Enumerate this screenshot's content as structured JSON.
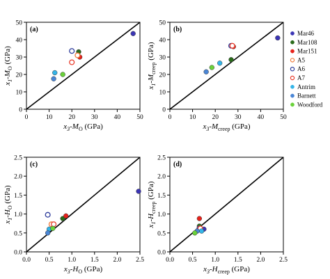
{
  "series_styles": [
    {
      "name": "Mar46",
      "color": "#3b35b5",
      "filled": true
    },
    {
      "name": "Mar108",
      "color": "#2a6b1a",
      "filled": true
    },
    {
      "name": "Mar151",
      "color": "#e8221b",
      "filled": true
    },
    {
      "name": "A5",
      "color": "#f07a3a",
      "filled": false
    },
    {
      "name": "A6",
      "color": "#2b3a9a",
      "filled": false
    },
    {
      "name": "A7",
      "color": "#e83a2a",
      "filled": false
    },
    {
      "name": "Antrim",
      "color": "#35b5e8",
      "filled": true
    },
    {
      "name": "Barnett",
      "color": "#4a86d6",
      "filled": true
    },
    {
      "name": "Woodford",
      "color": "#6ad23a",
      "filled": true
    }
  ],
  "chart_data": [
    {
      "type": "scatter",
      "panel_label": "(a)",
      "xlabel_main": "x",
      "xlabel_sub1": "3",
      "xlabel_mid": "-M",
      "xlabel_sub2": "O",
      "xlabel_unit": " (GPa)",
      "ylabel_main": "x",
      "ylabel_sub1": "1",
      "ylabel_mid": "-M",
      "ylabel_sub2": "O",
      "ylabel_unit": " (GPa)",
      "xlim": [
        0,
        50
      ],
      "ylim": [
        0,
        50
      ],
      "xticks": [
        "0",
        "10",
        "20",
        "30",
        "40",
        "50"
      ],
      "yticks": [
        "0",
        "10",
        "20",
        "30",
        "40",
        "50"
      ],
      "points": [
        {
          "series": "Mar46",
          "x": 47,
          "y": 43.5
        },
        {
          "series": "Mar108",
          "x": 23,
          "y": 33
        },
        {
          "series": "Mar151",
          "x": 23.5,
          "y": 30
        },
        {
          "series": "A5",
          "x": 22.5,
          "y": 31
        },
        {
          "series": "A6",
          "x": 20,
          "y": 33.5
        },
        {
          "series": "A7",
          "x": 20,
          "y": 27
        },
        {
          "series": "Antrim",
          "x": 12.5,
          "y": 21
        },
        {
          "series": "Barnett",
          "x": 12,
          "y": 17.5
        },
        {
          "series": "Woodford",
          "x": 16,
          "y": 20
        }
      ]
    },
    {
      "type": "scatter",
      "panel_label": "(b)",
      "xlabel_main": "x",
      "xlabel_sub1": "3",
      "xlabel_mid": "-M",
      "xlabel_sub2": "creep",
      "xlabel_unit": " (GPa)",
      "ylabel_main": "x",
      "ylabel_sub1": "1",
      "ylabel_mid": "-M",
      "ylabel_sub2": "creep",
      "ylabel_unit": " (GPa)",
      "xlim": [
        0,
        50
      ],
      "ylim": [
        0,
        50
      ],
      "xticks": [
        "0",
        "10",
        "20",
        "30",
        "40",
        "50"
      ],
      "yticks": [
        "0",
        "10",
        "20",
        "30",
        "40",
        "50"
      ],
      "points": [
        {
          "series": "Mar46",
          "x": 47.5,
          "y": 41
        },
        {
          "series": "Mar108",
          "x": 27,
          "y": 28.5
        },
        {
          "series": "Mar151",
          "x": 28,
          "y": 36
        },
        {
          "series": "A5",
          "x": 27.5,
          "y": 36.5
        },
        {
          "series": "A6",
          "x": 27,
          "y": 36.5
        },
        {
          "series": "A7",
          "x": 27.5,
          "y": 36.5
        },
        {
          "series": "Antrim",
          "x": 22,
          "y": 26.5
        },
        {
          "series": "Barnett",
          "x": 16,
          "y": 21.5
        },
        {
          "series": "Woodford",
          "x": 18.5,
          "y": 24
        }
      ]
    },
    {
      "type": "scatter",
      "panel_label": "(c)",
      "xlabel_main": "x",
      "xlabel_sub1": "3",
      "xlabel_mid": "-H",
      "xlabel_sub2": "O",
      "xlabel_unit": " (GPa)",
      "ylabel_main": "x",
      "ylabel_sub1": "1",
      "ylabel_mid": "-H",
      "ylabel_sub2": "O",
      "ylabel_unit": " (GPa)",
      "xlim": [
        0,
        2.5
      ],
      "ylim": [
        0,
        2.5
      ],
      "xticks": [
        "0.0",
        "0.5",
        "1.0",
        "1.5",
        "2.0",
        "2.5"
      ],
      "yticks": [
        "0.0",
        "0.5",
        "1.0",
        "1.5",
        "2.0",
        "2.5"
      ],
      "points": [
        {
          "series": "Mar46",
          "x": 2.47,
          "y": 1.6
        },
        {
          "series": "Mar108",
          "x": 0.8,
          "y": 0.88
        },
        {
          "series": "Mar151",
          "x": 0.87,
          "y": 0.95
        },
        {
          "series": "A5",
          "x": 0.55,
          "y": 0.73
        },
        {
          "series": "A6",
          "x": 0.47,
          "y": 0.98
        },
        {
          "series": "A7",
          "x": 0.6,
          "y": 0.73
        },
        {
          "series": "Antrim",
          "x": 0.5,
          "y": 0.6
        },
        {
          "series": "Barnett",
          "x": 0.47,
          "y": 0.5
        },
        {
          "series": "Woodford",
          "x": 0.58,
          "y": 0.62
        }
      ]
    },
    {
      "type": "scatter",
      "panel_label": "(d)",
      "xlabel_main": "x",
      "xlabel_sub1": "3",
      "xlabel_mid": "-H",
      "xlabel_sub2": "creep",
      "xlabel_unit": " (GPa)",
      "ylabel_main": "x",
      "ylabel_sub1": "1",
      "ylabel_mid": "-H",
      "ylabel_sub2": "creep",
      "ylabel_unit": " (GPa)",
      "xlim": [
        0,
        2.5
      ],
      "ylim": [
        0,
        2.5
      ],
      "xticks": [
        "0.0",
        "0.5",
        "1.0",
        "1.5",
        "2.0",
        "2.5"
      ],
      "yticks": [
        "0.0",
        "0.5",
        "1.0",
        "1.5",
        "2.0",
        "2.5"
      ],
      "points": [
        {
          "series": "Mar46",
          "x": 0.75,
          "y": 0.6
        },
        {
          "series": "Mar108",
          "x": 0.65,
          "y": 0.68
        },
        {
          "series": "Mar151",
          "x": 0.65,
          "y": 0.88
        },
        {
          "series": "A5",
          "x": 0.65,
          "y": 0.62
        },
        {
          "series": "A6",
          "x": 0.65,
          "y": 0.62
        },
        {
          "series": "A7",
          "x": 0.67,
          "y": 0.62
        },
        {
          "series": "Antrim",
          "x": 0.7,
          "y": 0.55
        },
        {
          "series": "Barnett",
          "x": 0.6,
          "y": 0.55
        },
        {
          "series": "Woodford",
          "x": 0.55,
          "y": 0.5
        }
      ]
    }
  ]
}
